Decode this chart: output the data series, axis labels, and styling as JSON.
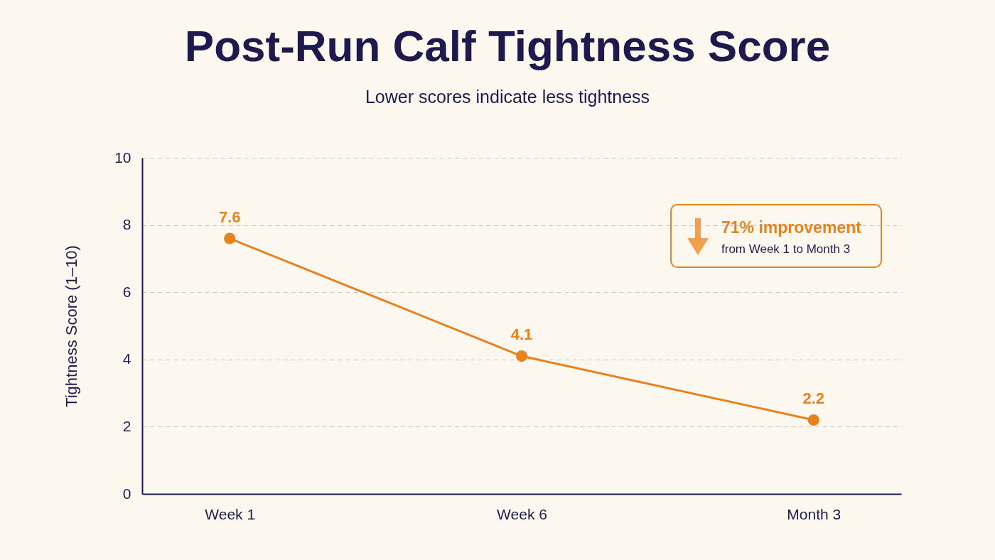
{
  "chart_data": {
    "type": "line",
    "title": "Post-Run Calf Tightness Score",
    "subtitle": "Lower scores indicate less tightness",
    "ylabel": "Tightness Score (1–10)",
    "categories": [
      "Week 1",
      "Week 6",
      "Month 3"
    ],
    "series": [
      {
        "color": "#e8821e",
        "values": [
          7.6,
          4.1,
          2.2
        ]
      }
    ],
    "ylim": [
      0,
      10
    ],
    "yticks": [
      0,
      2,
      4,
      6,
      8,
      10
    ],
    "grid": "y",
    "marker": "circle",
    "data_labels": true,
    "annotations": [
      "71% improvement",
      "from Week 1 to Month 3"
    ]
  }
}
